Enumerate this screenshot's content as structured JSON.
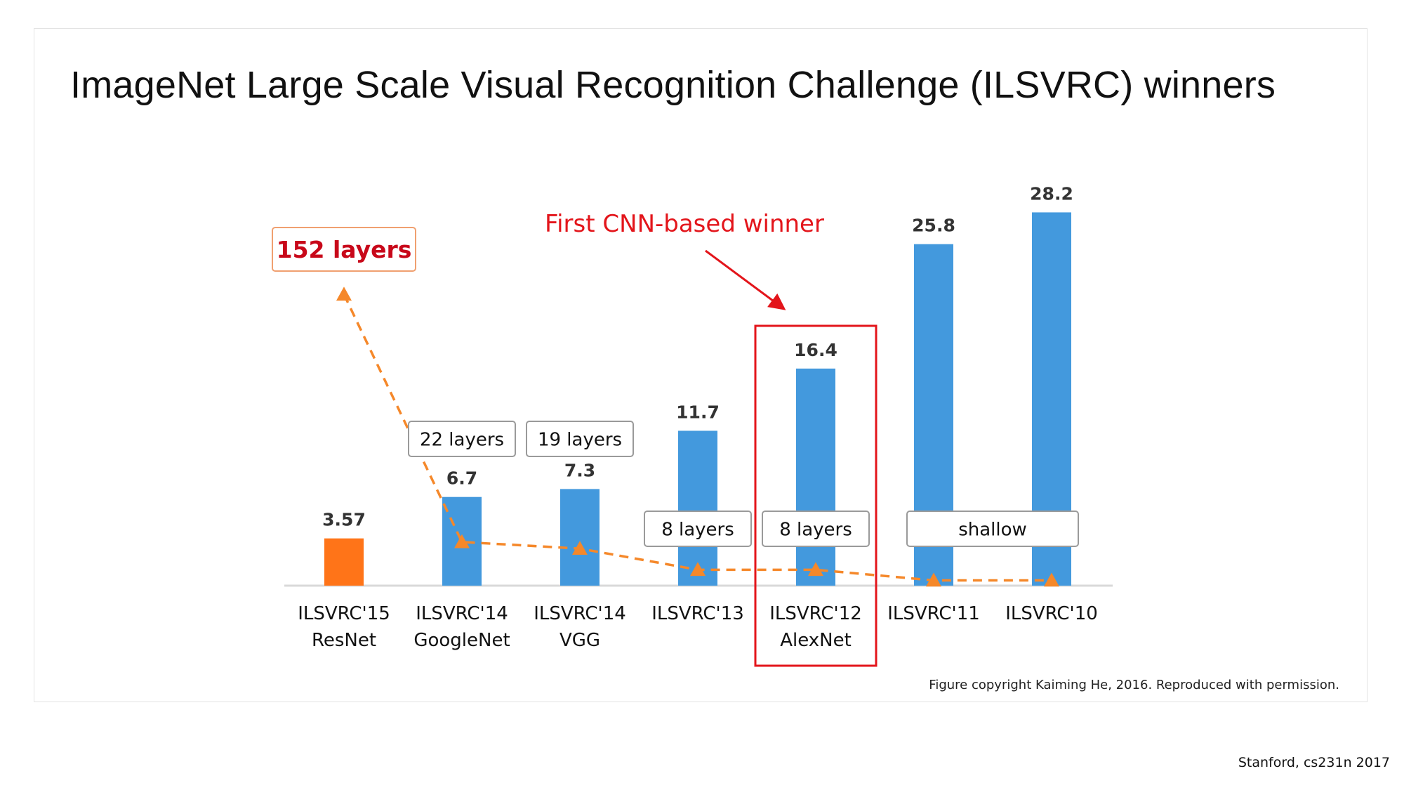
{
  "slide": {
    "title": "ImageNet Large Scale Visual Recognition Challenge (ILSVRC) winners",
    "copyright": "Figure copyright Kaiming He, 2016. Reproduced with permission.",
    "footer": "Stanford, cs231n 2017"
  },
  "chart_data": {
    "type": "bar",
    "title": "",
    "xlabel": "",
    "ylabel": "",
    "ylim": [
      0,
      30
    ],
    "grid": false,
    "categories": [
      [
        "ILSVRC'15",
        "ResNet"
      ],
      [
        "ILSVRC'14",
        "GoogleNet"
      ],
      [
        "ILSVRC'14",
        "VGG"
      ],
      [
        "ILSVRC'13"
      ],
      [
        "ILSVRC'12",
        "AlexNet"
      ],
      [
        "ILSVRC'11"
      ],
      [
        "ILSVRC'10"
      ]
    ],
    "values": [
      3.57,
      6.7,
      7.3,
      11.7,
      16.4,
      25.8,
      28.2
    ],
    "value_labels": [
      "3.57",
      "6.7",
      "7.3",
      "11.7",
      "16.4",
      "25.8",
      "28.2"
    ],
    "bar_colors": [
      "#ff7418",
      "#4399dd",
      "#4399dd",
      "#4399dd",
      "#4399dd",
      "#4399dd",
      "#4399dd"
    ],
    "depth_trend": {
      "marker_values": [
        22,
        3.3,
        2.8,
        1.2,
        1.2,
        0.4,
        0.4
      ],
      "color": "#f5882a",
      "style": "dashed"
    },
    "depth_labels": [
      {
        "text": "152 layers",
        "index": 0,
        "emphasis": true
      },
      {
        "text": "22 layers",
        "index": 1,
        "emphasis": false
      },
      {
        "text": "19 layers",
        "index": 2,
        "emphasis": false
      },
      {
        "text": "8 layers",
        "index": 3,
        "emphasis": false
      },
      {
        "text": "8 layers",
        "index": 4,
        "emphasis": false
      },
      {
        "text": "shallow",
        "index": 5,
        "span_to": 6,
        "emphasis": false
      }
    ],
    "highlight": {
      "index": 4,
      "annotation": "First CNN-based winner",
      "color": "#e3151b"
    }
  }
}
